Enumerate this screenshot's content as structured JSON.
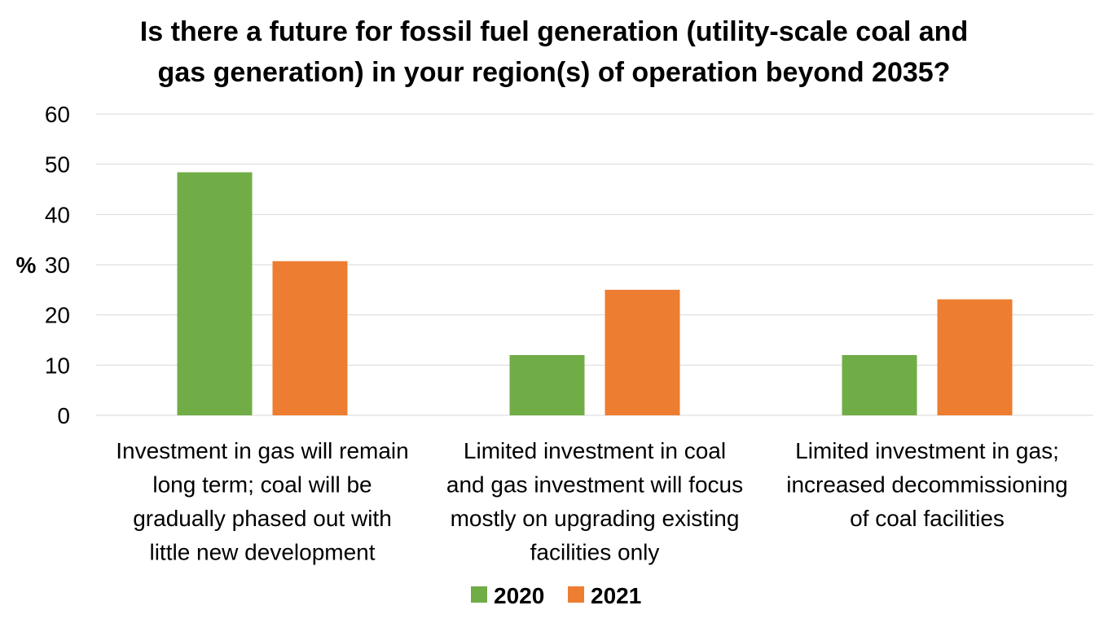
{
  "chart_data": {
    "type": "bar",
    "title": "Is there a future for fossil fuel generation (utility-scale coal and gas generation) in your region(s) of operation beyond 2035?",
    "title_lines": [
      "Is there a future for fossil fuel generation (utility-scale coal and",
      "gas generation) in your region(s) of operation beyond 2035?"
    ],
    "ylabel": "%",
    "xlabel": "",
    "ylim": [
      0,
      60
    ],
    "yticks": [
      0,
      10,
      20,
      30,
      40,
      50,
      60
    ],
    "grid": true,
    "legend_position": "bottom",
    "categories": [
      "Investment in gas will remain long term; coal will be gradually phased out with little new development",
      "Limited investment in coal and gas investment will focus mostly on upgrading existing facilities only",
      "Limited investment in gas; increased decommissioning of coal facilities"
    ],
    "category_lines": [
      [
        "Investment in gas will remain",
        "long term; coal will be",
        "gradually phased out with",
        "little new development"
      ],
      [
        "Limited investment in coal",
        "and gas investment will focus",
        "mostly on upgrading existing",
        "facilities only"
      ],
      [
        "Limited investment in gas;",
        "increased decommissioning",
        "of coal facilities"
      ]
    ],
    "series": [
      {
        "name": "2020",
        "color": "#70ad47",
        "values": [
          48.4,
          12.0,
          12.0
        ]
      },
      {
        "name": "2021",
        "color": "#ed7d31",
        "values": [
          30.7,
          25.0,
          23.1
        ]
      }
    ]
  }
}
